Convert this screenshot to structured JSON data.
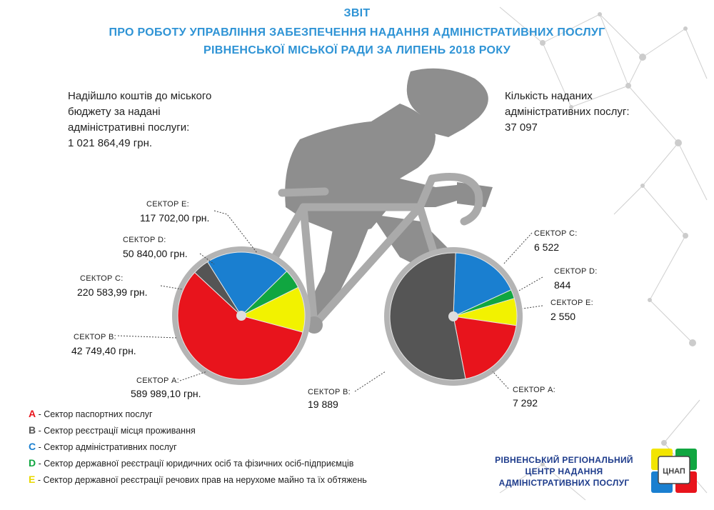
{
  "header": {
    "line1": "ЗВІТ",
    "line2": "ПРО РОБОТУ УПРАВЛІННЯ ЗАБЕЗПЕЧЕННЯ НАДАННЯ АДМІНІСТРАТИВНИХ ПОСЛУГ",
    "line3": "РІВНЕНСЬКОЇ МІСЬКОЇ РАДИ ЗА ЛИПЕНЬ 2018 РОКУ"
  },
  "left_info": {
    "line1": "Надійшло коштів до міського",
    "line2": "бюджету за надані",
    "line3": "адміністративні послуги:",
    "total": "1 021 864,49 грн."
  },
  "right_info": {
    "line1": "Кількість наданих",
    "line2": "адміністративних послуг:",
    "total": "37 097"
  },
  "left_labels": {
    "e": {
      "name": "СЕКТОР Е:",
      "value": "117 702,00 грн."
    },
    "d": {
      "name": "СЕКТОР D:",
      "value": "50 840,00 грн."
    },
    "c": {
      "name": "СЕКТОР С:",
      "value": "220 583,99 грн."
    },
    "b": {
      "name": "СЕКТОР В:",
      "value": "42 749,40 грн."
    },
    "a": {
      "name": "СЕКТОР А:",
      "value": "589 989,10 грн."
    }
  },
  "right_labels": {
    "c": {
      "name": "СЕКТОР С:",
      "value": "6 522"
    },
    "d": {
      "name": "СЕКТОР D:",
      "value": "844"
    },
    "e": {
      "name": "СЕКТОР Е:",
      "value": "2 550"
    },
    "b": {
      "name": "СЕКТОР В:",
      "value": "19 889"
    },
    "a": {
      "name": "СЕКТОР А:",
      "value": "7 292"
    }
  },
  "legend": [
    {
      "key": "A",
      "text": " - Сектор паспортних послуг",
      "color": "#e8141c"
    },
    {
      "key": "B",
      "text": " - Сектор реєстрації місця проживання",
      "color": "#555555"
    },
    {
      "key": "C",
      "text": " - Сектор адміністративних послуг",
      "color": "#1a7fd0"
    },
    {
      "key": "D",
      "text": " - Сектор державної реєстрації юридичних осіб та фізичних осіб-підприємців",
      "color": "#10a640"
    },
    {
      "key": "E",
      "text": " - Сектор державної реєстрації речових прав на нерухоме майно та їх обтяжень",
      "color": "#e8d800"
    }
  ],
  "org": {
    "line1": "РІВНЕНСЬКИЙ РЕГІОНАЛЬНИЙ",
    "line2": "ЦЕНТР НАДАННЯ",
    "line3": "АДМІНІСТРАТИВНИХ ПОСЛУГ",
    "logo_text": "ЦНАП"
  },
  "colors": {
    "title": "#2e93d5",
    "A": "#e8141c",
    "B": "#555555",
    "C": "#1a7fd0",
    "D": "#10a640",
    "E": "#f2f200"
  },
  "chart_data": [
    {
      "type": "pie",
      "unit": "грн.",
      "categories": [
        "СЕКТОР А",
        "СЕКТОР В",
        "СЕКТОР С",
        "СЕКТОР D",
        "СЕКТОР Е"
      ],
      "values": [
        589989.1,
        42749.4,
        220583.99,
        50840.0,
        117702.0
      ]
    },
    {
      "type": "pie",
      "categories": [
        "СЕКТОР А",
        "СЕКТОР В",
        "СЕКТОР С",
        "СЕКТОР D",
        "СЕКТОР Е"
      ],
      "values": [
        7292,
        19889,
        6522,
        844,
        2550
      ]
    }
  ]
}
